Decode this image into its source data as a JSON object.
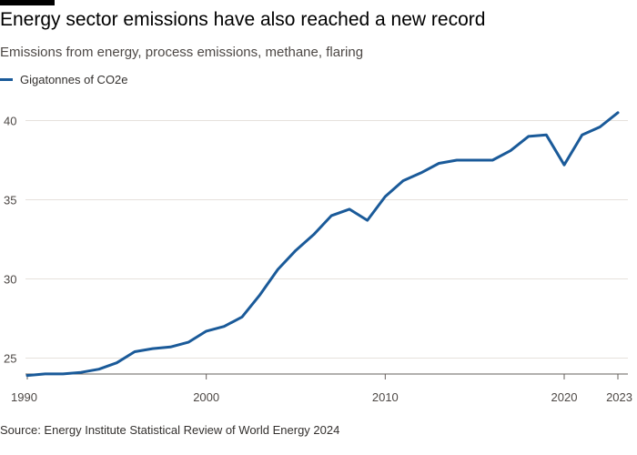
{
  "title": "Energy sector emissions have also reached a new record",
  "subtitle": "Emissions from energy, process emissions, methane, flaring",
  "source": "Source: Energy Institute Statistical Review of World Energy 2024",
  "colors": {
    "line": "#1a5a99",
    "grid": "#e6e1dc",
    "axis": "#66605c"
  },
  "chart_data": {
    "type": "line",
    "title": "Energy sector emissions have also reached a new record",
    "subtitle": "Emissions from energy, process emissions, methane, flaring",
    "xlabel": "",
    "ylabel": "",
    "xlim": [
      1990,
      2023
    ],
    "ylim": [
      24,
      41
    ],
    "x_ticks": [
      1990,
      2000,
      2010,
      2020,
      2023
    ],
    "y_ticks": [
      25,
      30,
      35,
      40
    ],
    "grid": "horizontal",
    "legend_position": "top-left",
    "series": [
      {
        "name": "Gigatonnes of CO2e",
        "x": [
          1990,
          1991,
          1992,
          1993,
          1994,
          1995,
          1996,
          1997,
          1998,
          1999,
          2000,
          2001,
          2002,
          2003,
          2004,
          2005,
          2006,
          2007,
          2008,
          2009,
          2010,
          2011,
          2012,
          2013,
          2014,
          2015,
          2016,
          2017,
          2018,
          2019,
          2020,
          2021,
          2022,
          2023
        ],
        "values": [
          23.9,
          24.0,
          24.0,
          24.1,
          24.3,
          24.7,
          25.4,
          25.6,
          25.7,
          26.0,
          26.7,
          27.0,
          27.6,
          29.0,
          30.6,
          31.8,
          32.8,
          34.0,
          34.4,
          33.7,
          35.2,
          36.2,
          36.7,
          37.3,
          37.5,
          37.5,
          37.5,
          38.1,
          39.0,
          39.1,
          37.2,
          39.1,
          39.6,
          40.5
        ]
      }
    ]
  }
}
